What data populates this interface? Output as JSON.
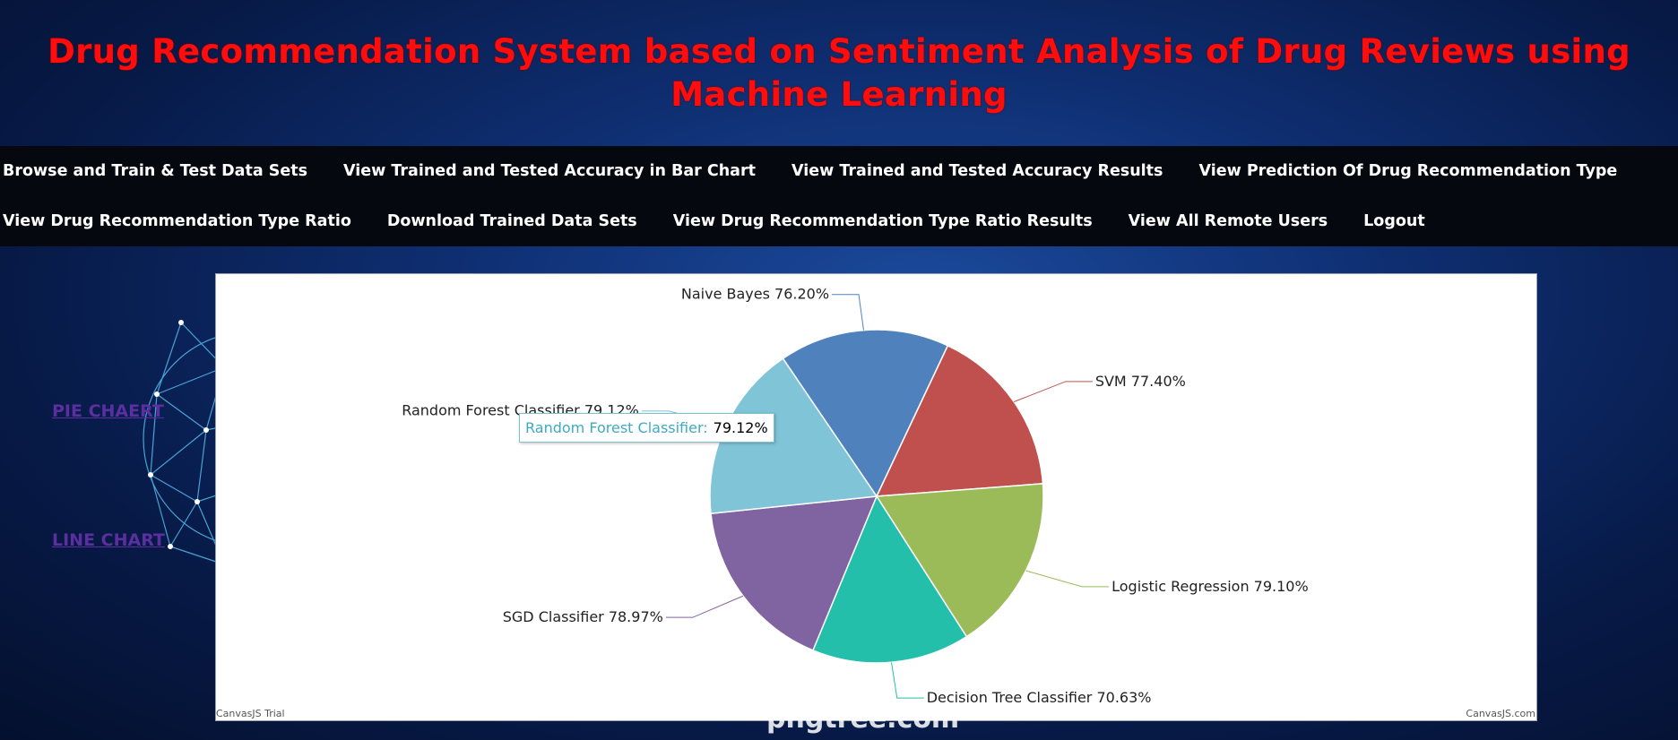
{
  "header": {
    "title": "Drug Recommendation System based on Sentiment Analysis of Drug Reviews using Machine Learning"
  },
  "nav": {
    "row1": [
      "Browse and Train & Test Data Sets",
      "View Trained and Tested Accuracy in Bar Chart",
      "View Trained and Tested Accuracy Results",
      "View Prediction Of Drug Recommendation Type"
    ],
    "row2": [
      "View Drug Recommendation Type Ratio",
      "Download Trained Data Sets",
      "View Drug Recommendation Type Ratio Results",
      "View All Remote Users",
      "Logout"
    ]
  },
  "sidebar": {
    "pie_link": "PIE CHAERT",
    "line_link": "LINE CHART"
  },
  "chart_data": {
    "type": "pie",
    "slices": [
      {
        "label": "Naive Bayes",
        "value": 76.2,
        "text": "76.20%",
        "color": "#4f81bc"
      },
      {
        "label": "SVM",
        "value": 77.4,
        "text": "77.40%",
        "color": "#c0504e"
      },
      {
        "label": "Logistic Regression",
        "value": 79.1,
        "text": "79.10%",
        "color": "#9bbb58"
      },
      {
        "label": "Decision Tree Classifier",
        "value": 70.63,
        "text": "70.63%",
        "color": "#23bfaa"
      },
      {
        "label": "SGD Classifier",
        "value": 78.97,
        "text": "78.97%",
        "color": "#8064a1"
      },
      {
        "label": "Random Forest Classifier",
        "value": 79.12,
        "text": "79.12%",
        "color": "#7fc4d7"
      }
    ],
    "tooltip": {
      "name": "Random Forest Classifier:",
      "value": "79.12%"
    }
  },
  "credits": {
    "left": "CanvasJS Trial",
    "right": "CanvasJS.com"
  },
  "watermark": "pngtree.com"
}
